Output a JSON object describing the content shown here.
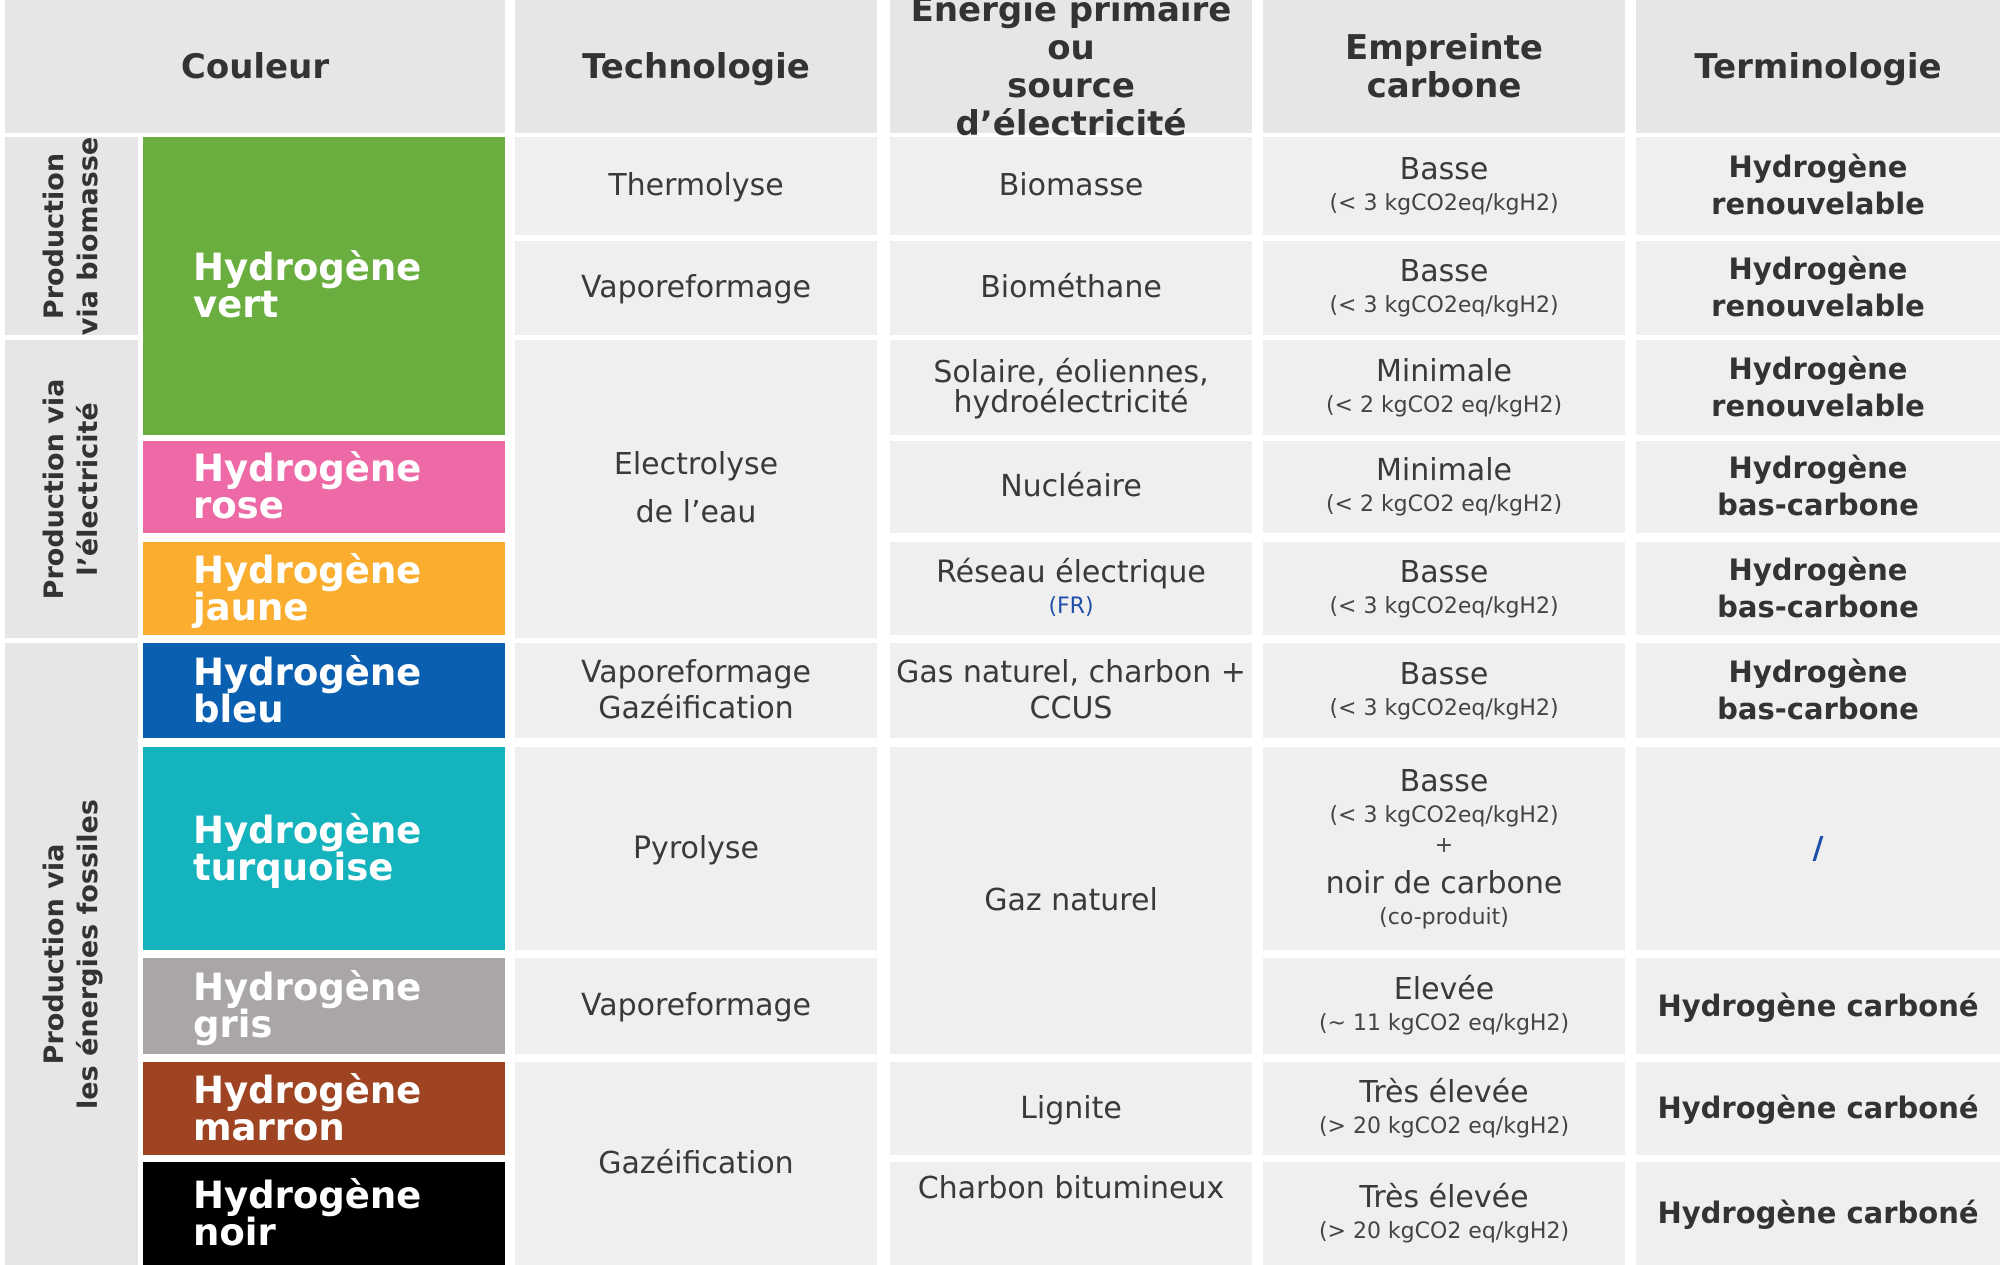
{
  "headers": {
    "couleur": "Couleur",
    "technologie": "Technologie",
    "energie_1": "Energie primaire ou",
    "energie_2": "source d’électricité",
    "empreinte_1": "Empreinte",
    "empreinte_2": "carbone",
    "terminologie": "Terminologie"
  },
  "groups": {
    "biomasse_1": "Production",
    "biomasse_2": "via biomasse",
    "electricite_1": "Production via",
    "electricite_2": "l’électricité",
    "fossiles_1": "Production via",
    "fossiles_2": "les énergies fossiles"
  },
  "colors": {
    "vert": {
      "line1": "Hydrogène",
      "line2": "vert",
      "hex": "#6aae3f"
    },
    "rose": {
      "line1": "Hydrogène",
      "line2": "rose",
      "hex": "#ee6aa7"
    },
    "jaune": {
      "line1": "Hydrogène",
      "line2": "jaune",
      "hex": "#fbad2f"
    },
    "bleu": {
      "line1": "Hydrogène",
      "line2": "bleu",
      "hex": "#0a5fb0"
    },
    "turquoise": {
      "line1": "Hydrogène",
      "line2": "turquoise",
      "hex": "#14b3bd"
    },
    "gris": {
      "line1": "Hydrogène",
      "line2": "gris",
      "hex": "#a9a6a5"
    },
    "marron": {
      "line1": "Hydrogène",
      "line2": "marron",
      "hex": "#9e4422"
    },
    "noir": {
      "line1": "Hydrogène",
      "line2": "noir",
      "hex": "#000000"
    }
  },
  "technologie": {
    "thermolyse": "Thermolyse",
    "vaporeformage_1": "Vaporeformage",
    "electrolyse_1": "Electrolyse",
    "electrolyse_2": "de l’eau",
    "vapo_gaz_1": "Vaporeformage",
    "vapo_gaz_2": "Gazéification",
    "pyrolyse": "Pyrolyse",
    "vaporeformage_2": "Vaporeformage",
    "gazeification": "Gazéification"
  },
  "energie": {
    "biomasse": "Biomasse",
    "biomethane": "Biométhane",
    "solaire_1": "Solaire, éoliennes,",
    "solaire_2": "hydroélectricité",
    "nucleaire": "Nucléaire",
    "reseau": "Réseau électrique",
    "reseau_sub": "(FR)",
    "gas_1": "Gas naturel, charbon +",
    "gas_2": "CCUS",
    "gaz_naturel": "Gaz naturel",
    "lignite": "Lignite",
    "charbon": "Charbon bitumineux"
  },
  "empreinte": {
    "r1": {
      "main": "Basse",
      "sub": "(< 3 kgCO2eq/kgH2)"
    },
    "r2": {
      "main": "Basse",
      "sub": "(< 3 kgCO2eq/kgH2)"
    },
    "r3": {
      "main": "Minimale",
      "sub": "(< 2 kgCO2 eq/kgH2)"
    },
    "r4": {
      "main": "Minimale",
      "sub": "(< 2 kgCO2 eq/kgH2)"
    },
    "r5": {
      "main": "Basse",
      "sub": "(< 3 kgCO2eq/kgH2)"
    },
    "r6": {
      "main": "Basse",
      "sub": "(< 3 kgCO2eq/kgH2)"
    },
    "r7": {
      "main": "Basse",
      "sub": "(< 3 kgCO2eq/kgH2)",
      "plus": "+",
      "main2": "noir de carbone",
      "sub2": "(co-produit)"
    },
    "r8": {
      "main": "Elevée",
      "sub": "(~ 11 kgCO2 eq/kgH2)"
    },
    "r9": {
      "main": "Très élevée",
      "sub": "(> 20 kgCO2 eq/kgH2)"
    },
    "r10": {
      "main": "Très élevée",
      "sub": "(> 20 kgCO2 eq/kgH2)"
    }
  },
  "terminologie": {
    "r1": {
      "line1": "Hydrogène",
      "line2": "renouvelable"
    },
    "r2": {
      "line1": "Hydrogène",
      "line2": "renouvelable"
    },
    "r3": {
      "line1": "Hydrogène",
      "line2": "renouvelable"
    },
    "r4": {
      "line1": "Hydrogène",
      "line2": "bas-carbone"
    },
    "r5": {
      "line1": "Hydrogène",
      "line2": "bas-carbone"
    },
    "r6": {
      "line1": "Hydrogène",
      "line2": "bas-carbone"
    },
    "r7": "/",
    "r8": "Hydrogène carboné",
    "r9": "Hydrogène carboné",
    "r10": "Hydrogène carboné"
  }
}
